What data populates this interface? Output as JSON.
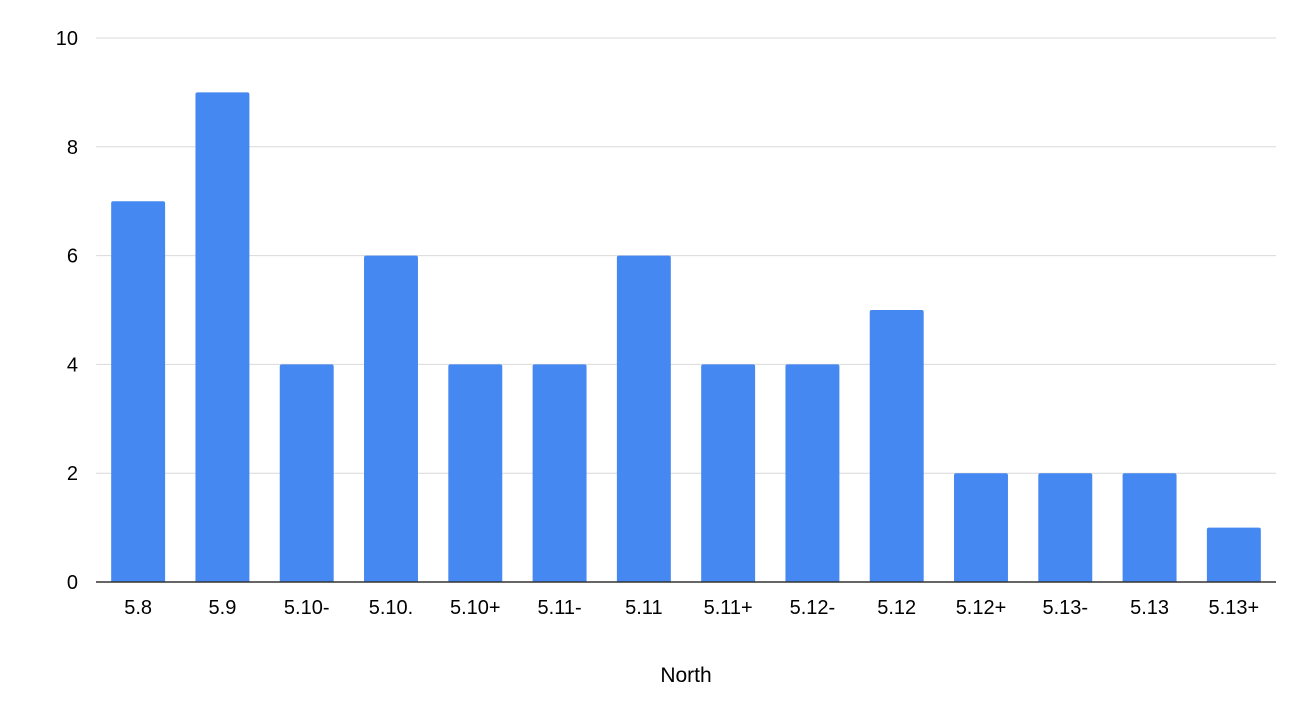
{
  "chart_data": {
    "type": "bar",
    "categories": [
      "5.8",
      "5.9",
      "5.10-",
      "5.10.",
      "5.10+",
      "5.11-",
      "5.11",
      "5.11+",
      "5.12-",
      "5.12",
      "5.12+",
      "5.13-",
      "5.13",
      "5.13+"
    ],
    "series": [
      {
        "values": [
          7,
          9,
          4,
          6,
          4,
          4,
          6,
          4,
          4,
          5,
          2,
          2,
          2,
          1
        ]
      }
    ],
    "xlabel": "North",
    "ylabel": "",
    "ylim": [
      0,
      10
    ],
    "yticks": [
      0,
      2,
      4,
      6,
      8,
      10
    ],
    "grid": true,
    "legend": "none",
    "colors": {
      "bar": "#4688f1",
      "grid": "#d9d9d9",
      "axis": "#333333",
      "text": "#000000"
    }
  }
}
